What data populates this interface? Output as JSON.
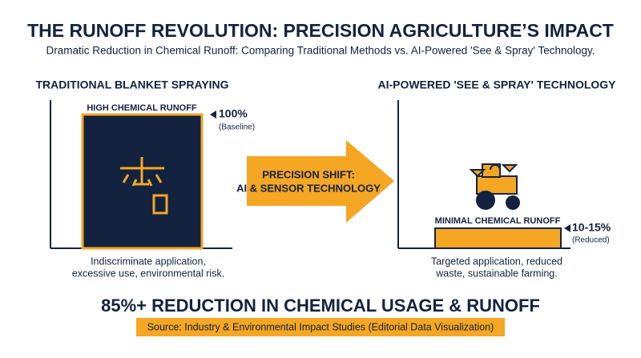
{
  "header": {
    "title": "THE RUNOFF REVOLUTION: PRECISION AGRICULTURE’S IMPACT",
    "subtitle": "Dramatic Reduction in Chemical Runoff: Comparing Traditional Methods vs. AI-Powered 'See & Spray' Technology."
  },
  "left": {
    "heading": "TRADITIONAL BLANKET SPRAYING",
    "bar_label": "HIGH CHEMICAL RUNOFF",
    "value": 100,
    "value_label": "100%",
    "note": "(Baseline)",
    "caption": [
      "Indiscriminate application,",
      "excessive use, environmental risk."
    ]
  },
  "middle": {
    "arrow_text": [
      "PRECISION SHIFT:",
      "AI & SENSOR TECHNOLOGY"
    ]
  },
  "right": {
    "heading": "AI-POWERED 'SEE & SPRAY' TECHNOLOGY",
    "bar_label": "MINIMAL CHEMICAL RUNOFF",
    "low": 10,
    "high": 15,
    "value_label": "10-15%",
    "note": "(Reduced)",
    "caption": [
      "Targeted application, reduced",
      "waste, sustainable farming."
    ]
  },
  "footer": {
    "headline": "85%+ REDUCTION IN CHEMICAL USAGE & RUNOFF",
    "source": "Source: Industry & Environmental Impact Studies (Editorial Data Visualization)"
  }
}
